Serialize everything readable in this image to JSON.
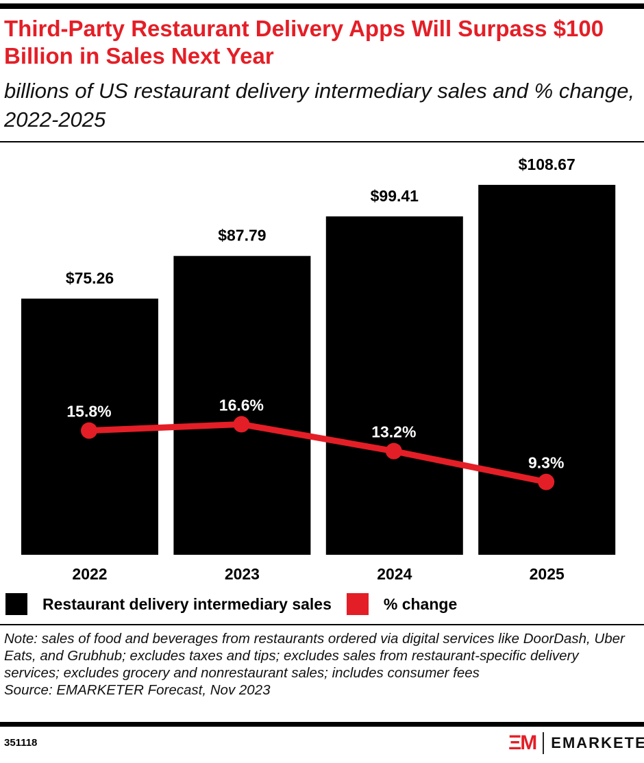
{
  "title": "Third-Party Restaurant Delivery Apps Will Surpass $100 Billion in Sales Next Year",
  "subtitle": "billions of US restaurant delivery intermediary sales and % change, 2022-2025",
  "chart_data": {
    "type": "bar+line",
    "categories": [
      "2022",
      "2023",
      "2024",
      "2025"
    ],
    "series": [
      {
        "name": "Restaurant delivery intermediary sales",
        "type": "bar",
        "values": [
          75.26,
          87.79,
          99.41,
          108.67
        ],
        "labels": [
          "$75.26",
          "$87.79",
          "$99.41",
          "$108.67"
        ],
        "color": "#000000"
      },
      {
        "name": "% change",
        "type": "line",
        "values": [
          15.8,
          16.6,
          13.2,
          9.3
        ],
        "labels": [
          "15.8%",
          "16.6%",
          "13.2%",
          "9.3%"
        ],
        "color": "#e41e26"
      }
    ],
    "grid": false,
    "legend_placement": "bottom-left"
  },
  "notes": {
    "note": "Note: sales of food and beverages from restaurants ordered via digital services like DoorDash, Uber Eats, and Grubhub; excludes taxes and tips; excludes sales from restaurant-specific delivery services; excludes grocery and nonrestaurant sales; includes consumer fees",
    "source": "Source: EMARKETER Forecast, Nov 2023"
  },
  "footer": {
    "chart_id": "351118",
    "logo_mark": "EM",
    "brand": "EMARKETER"
  },
  "colors": {
    "accent": "#e41e26",
    "bar": "#000000"
  }
}
